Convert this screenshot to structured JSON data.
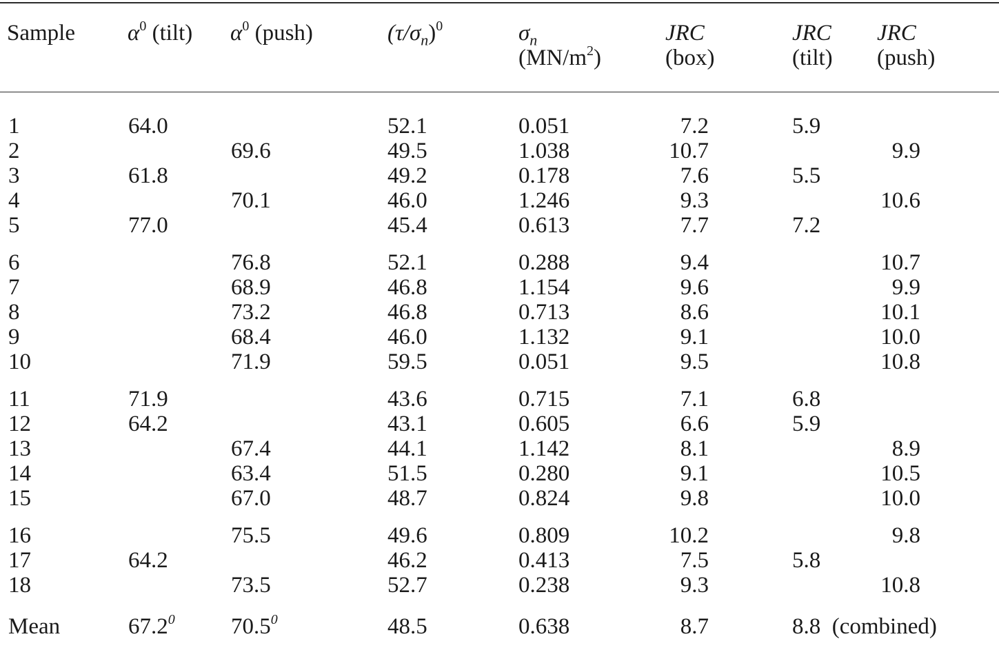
{
  "table": {
    "headers": {
      "sample": "Sample",
      "alpha_tilt": {
        "symbol": "α",
        "sup": "0",
        "suffix": " (tilt)"
      },
      "alpha_push": {
        "symbol": "α",
        "sup": "0",
        "suffix": " (push)"
      },
      "tau_sigma": {
        "pre": "(τ/σ",
        "sub": "n",
        "post": ")",
        "sup": "0"
      },
      "sigma_n": {
        "symbol": "σ",
        "sub": "n",
        "line2_pre": "(MN/m",
        "line2_sup": "2",
        "line2_post": ")"
      },
      "jrc_box": {
        "line1": "JRC",
        "line2": "(box)"
      },
      "jrc_tilt": {
        "line1": "JRC",
        "line2": "(tilt)"
      },
      "jrc_push": {
        "line1": "JRC",
        "line2": "(push)"
      }
    },
    "rows": [
      {
        "sample": "1",
        "alpha_tilt": "64.0",
        "alpha_push": "",
        "tau_sigma": "52.1",
        "sigma_n": "0.051",
        "jrc_box": "7.2",
        "jrc_tilt": "5.9",
        "jrc_push": ""
      },
      {
        "sample": "2",
        "alpha_tilt": "",
        "alpha_push": "69.6",
        "tau_sigma": "49.5",
        "sigma_n": "1.038",
        "jrc_box": "10.7",
        "jrc_tilt": "",
        "jrc_push": "9.9"
      },
      {
        "sample": "3",
        "alpha_tilt": "61.8",
        "alpha_push": "",
        "tau_sigma": "49.2",
        "sigma_n": "0.178",
        "jrc_box": "7.6",
        "jrc_tilt": "5.5",
        "jrc_push": ""
      },
      {
        "sample": "4",
        "alpha_tilt": "",
        "alpha_push": "70.1",
        "tau_sigma": "46.0",
        "sigma_n": "1.246",
        "jrc_box": "9.3",
        "jrc_tilt": "",
        "jrc_push": "10.6"
      },
      {
        "sample": "5",
        "alpha_tilt": "77.0",
        "alpha_push": "",
        "tau_sigma": "45.4",
        "sigma_n": "0.613",
        "jrc_box": "7.7",
        "jrc_tilt": "7.2",
        "jrc_push": ""
      },
      {
        "sample": "6",
        "alpha_tilt": "",
        "alpha_push": "76.8",
        "tau_sigma": "52.1",
        "sigma_n": "0.288",
        "jrc_box": "9.4",
        "jrc_tilt": "",
        "jrc_push": "10.7"
      },
      {
        "sample": "7",
        "alpha_tilt": "",
        "alpha_push": "68.9",
        "tau_sigma": "46.8",
        "sigma_n": "1.154",
        "jrc_box": "9.6",
        "jrc_tilt": "",
        "jrc_push": "9.9"
      },
      {
        "sample": "8",
        "alpha_tilt": "",
        "alpha_push": "73.2",
        "tau_sigma": "46.8",
        "sigma_n": "0.713",
        "jrc_box": "8.6",
        "jrc_tilt": "",
        "jrc_push": "10.1"
      },
      {
        "sample": "9",
        "alpha_tilt": "",
        "alpha_push": "68.4",
        "tau_sigma": "46.0",
        "sigma_n": "1.132",
        "jrc_box": "9.1",
        "jrc_tilt": "",
        "jrc_push": "10.0"
      },
      {
        "sample": "10",
        "alpha_tilt": "",
        "alpha_push": "71.9",
        "tau_sigma": "59.5",
        "sigma_n": "0.051",
        "jrc_box": "9.5",
        "jrc_tilt": "",
        "jrc_push": "10.8"
      },
      {
        "sample": "11",
        "alpha_tilt": "71.9",
        "alpha_push": "",
        "tau_sigma": "43.6",
        "sigma_n": "0.715",
        "jrc_box": "7.1",
        "jrc_tilt": "6.8",
        "jrc_push": ""
      },
      {
        "sample": "12",
        "alpha_tilt": "64.2",
        "alpha_push": "",
        "tau_sigma": "43.1",
        "sigma_n": "0.605",
        "jrc_box": "6.6",
        "jrc_tilt": "5.9",
        "jrc_push": ""
      },
      {
        "sample": "13",
        "alpha_tilt": "",
        "alpha_push": "67.4",
        "tau_sigma": "44.1",
        "sigma_n": "1.142",
        "jrc_box": "8.1",
        "jrc_tilt": "",
        "jrc_push": "8.9"
      },
      {
        "sample": "14",
        "alpha_tilt": "",
        "alpha_push": "63.4",
        "tau_sigma": "51.5",
        "sigma_n": "0.280",
        "jrc_box": "9.1",
        "jrc_tilt": "",
        "jrc_push": "10.5"
      },
      {
        "sample": "15",
        "alpha_tilt": "",
        "alpha_push": "67.0",
        "tau_sigma": "48.7",
        "sigma_n": "0.824",
        "jrc_box": "9.8",
        "jrc_tilt": "",
        "jrc_push": "10.0"
      },
      {
        "sample": "16",
        "alpha_tilt": "",
        "alpha_push": "75.5",
        "tau_sigma": "49.6",
        "sigma_n": "0.809",
        "jrc_box": "10.2",
        "jrc_tilt": "",
        "jrc_push": "9.8"
      },
      {
        "sample": "17",
        "alpha_tilt": "64.2",
        "alpha_push": "",
        "tau_sigma": "46.2",
        "sigma_n": "0.413",
        "jrc_box": "7.5",
        "jrc_tilt": "5.8",
        "jrc_push": ""
      },
      {
        "sample": "18",
        "alpha_tilt": "",
        "alpha_push": "73.5",
        "tau_sigma": "52.7",
        "sigma_n": "0.238",
        "jrc_box": "9.3",
        "jrc_tilt": "",
        "jrc_push": "10.8"
      }
    ],
    "mean_row": {
      "label": "Mean",
      "alpha_tilt": "67.2",
      "alpha_tilt_sup": "0",
      "alpha_push": "70.5",
      "alpha_push_sup": "0",
      "tau_sigma": "48.5",
      "sigma_n": "0.638",
      "jrc_box": "8.7",
      "jrc_combined": "8.8",
      "jrc_combined_note": "(combined)"
    }
  }
}
